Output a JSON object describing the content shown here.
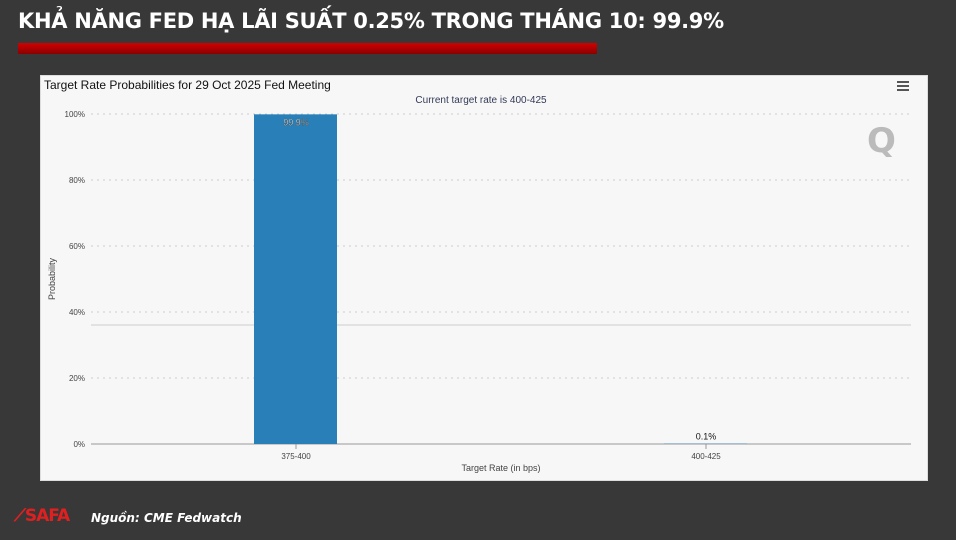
{
  "headline": "KHẢ NĂNG FED HẠ LÃI SUẤT 0.25% TRONG THÁNG 10: 99.9%",
  "footer": {
    "source": "Nguồn: CME Fedwatch",
    "logo": "SAFA"
  },
  "chart_data": {
    "type": "bar",
    "title": "Target Rate Probabilities for 29 Oct 2025 Fed Meeting",
    "subtitle": "Current target rate is 400-425",
    "xlabel": "Target Rate (in bps)",
    "ylabel": "Probability",
    "categories": [
      "375-400",
      "400-425"
    ],
    "values": [
      99.9,
      0.1
    ],
    "data_labels": [
      "99.9%",
      "0.1%"
    ],
    "ylim": [
      0,
      100
    ],
    "yticks": [
      "0%",
      "20%",
      "40%",
      "60%",
      "80%",
      "100%"
    ],
    "bar_color": "#2980b9",
    "grid": true
  }
}
